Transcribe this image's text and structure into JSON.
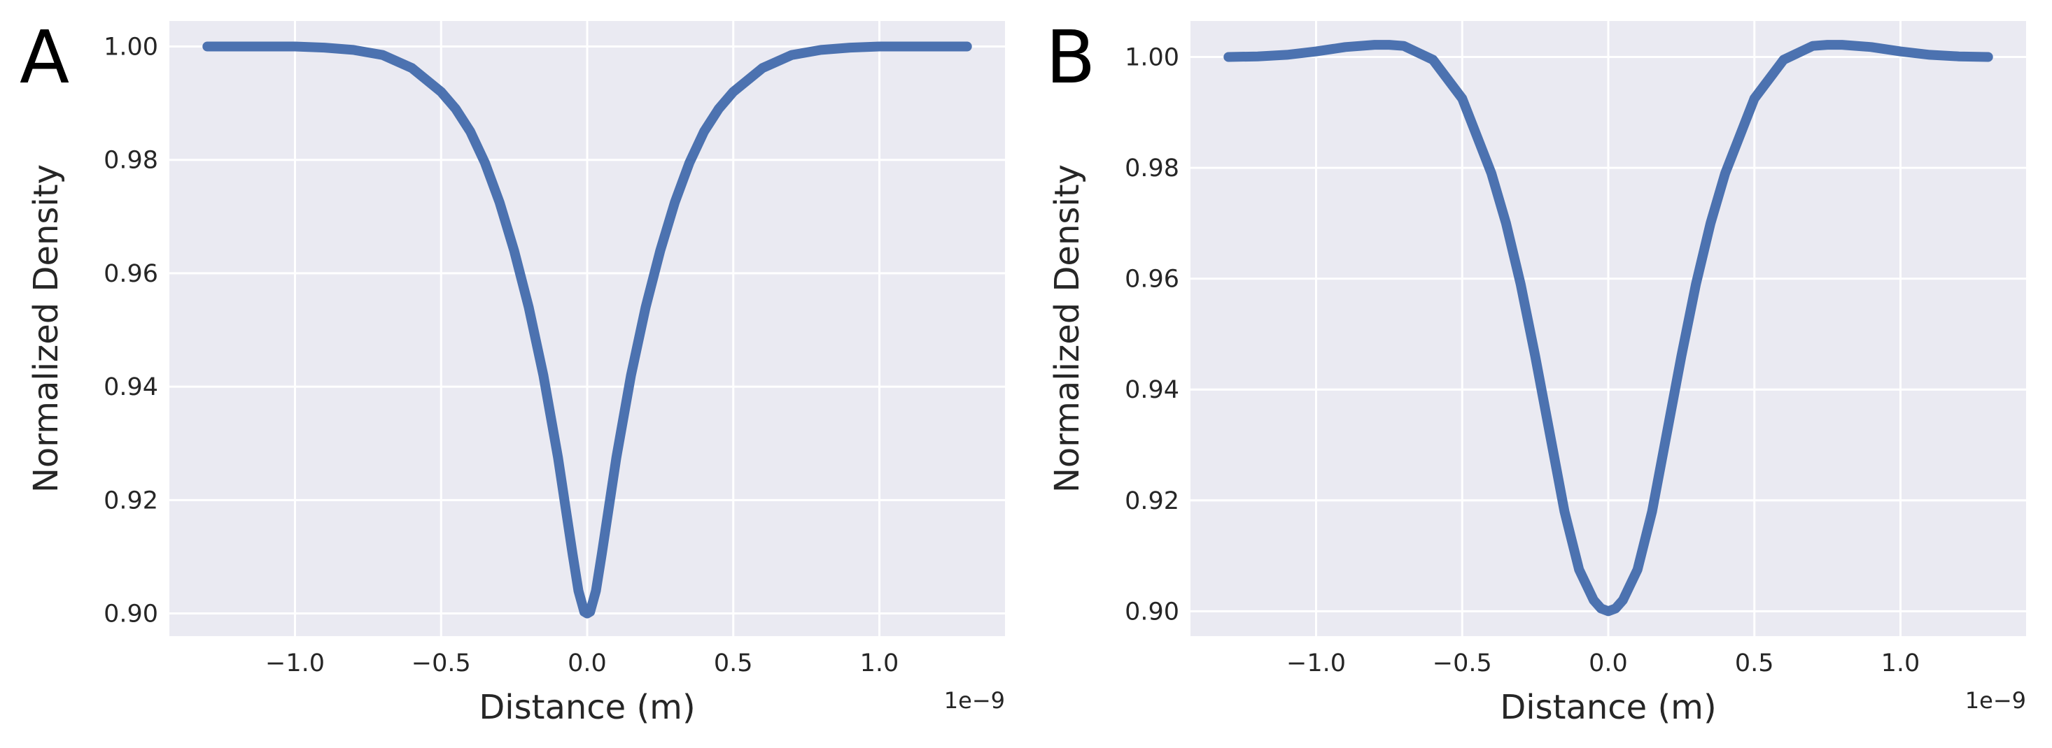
{
  "figure": {
    "panels": [
      {
        "letter": "A",
        "offset_label": "1e−9"
      },
      {
        "letter": "B",
        "offset_label": "1e−9"
      }
    ]
  },
  "chart_data": [
    {
      "type": "line",
      "panel": "A",
      "title": "",
      "xlabel": "Distance (m)",
      "ylabel": "Normalized Density",
      "x_scale_note": "1e−9",
      "xlim": [
        -1.43,
        1.43
      ],
      "ylim": [
        0.896,
        1.0045
      ],
      "xticks": [
        -1.0,
        -0.5,
        0.0,
        0.5,
        1.0
      ],
      "xtick_labels": [
        "−1.0",
        "−0.5",
        "0.0",
        "0.5",
        "1.0"
      ],
      "yticks": [
        0.9,
        0.92,
        0.94,
        0.96,
        0.98,
        1.0
      ],
      "ytick_labels": [
        "0.90",
        "0.92",
        "0.94",
        "0.96",
        "0.98",
        "1.00"
      ],
      "grid": true,
      "legend": "none",
      "series": [
        {
          "name": "density",
          "color": "#4c72b0",
          "x": [
            -1.3,
            -1.2,
            -1.1,
            -1.0,
            -0.9,
            -0.8,
            -0.7,
            -0.6,
            -0.5,
            -0.45,
            -0.4,
            -0.35,
            -0.3,
            -0.25,
            -0.2,
            -0.15,
            -0.1,
            -0.075,
            -0.05,
            -0.03,
            -0.01,
            0.0,
            0.01,
            0.03,
            0.05,
            0.075,
            0.1,
            0.15,
            0.2,
            0.25,
            0.3,
            0.35,
            0.4,
            0.45,
            0.5,
            0.6,
            0.7,
            0.8,
            0.9,
            1.0,
            1.1,
            1.2,
            1.3
          ],
          "y": [
            1.0,
            1.0,
            1.0,
            1.0,
            0.9998,
            0.9994,
            0.9985,
            0.9962,
            0.992,
            0.989,
            0.985,
            0.9795,
            0.9725,
            0.964,
            0.954,
            0.942,
            0.9275,
            0.919,
            0.9105,
            0.904,
            0.9003,
            0.9,
            0.9003,
            0.904,
            0.9105,
            0.919,
            0.9275,
            0.942,
            0.954,
            0.964,
            0.9725,
            0.9795,
            0.985,
            0.989,
            0.992,
            0.9962,
            0.9985,
            0.9994,
            0.9998,
            1.0,
            1.0,
            1.0,
            1.0
          ]
        }
      ]
    },
    {
      "type": "line",
      "panel": "B",
      "title": "",
      "xlabel": "Distance (m)",
      "ylabel": "Normalized Density",
      "x_scale_note": "1e−9",
      "xlim": [
        -1.43,
        1.43
      ],
      "ylim": [
        0.8955,
        1.0065
      ],
      "xticks": [
        -1.0,
        -0.5,
        0.0,
        0.5,
        1.0
      ],
      "xtick_labels": [
        "−1.0",
        "−0.5",
        "0.0",
        "0.5",
        "1.0"
      ],
      "yticks": [
        0.9,
        0.92,
        0.94,
        0.96,
        0.98,
        1.0
      ],
      "ytick_labels": [
        "0.90",
        "0.92",
        "0.94",
        "0.96",
        "0.98",
        "1.00"
      ],
      "grid": true,
      "legend": "none",
      "series": [
        {
          "name": "density",
          "color": "#4c72b0",
          "x": [
            -1.3,
            -1.2,
            -1.1,
            -1.0,
            -0.9,
            -0.8,
            -0.75,
            -0.7,
            -0.6,
            -0.5,
            -0.4,
            -0.35,
            -0.3,
            -0.25,
            -0.2,
            -0.15,
            -0.1,
            -0.05,
            -0.025,
            0.0,
            0.025,
            0.05,
            0.1,
            0.15,
            0.2,
            0.25,
            0.3,
            0.35,
            0.4,
            0.5,
            0.6,
            0.7,
            0.75,
            0.8,
            0.9,
            1.0,
            1.1,
            1.2,
            1.3
          ],
          "y": [
            1.0,
            1.0001,
            1.0004,
            1.001,
            1.0018,
            1.0022,
            1.0022,
            1.002,
            0.9995,
            0.9925,
            0.979,
            0.97,
            0.959,
            0.946,
            0.932,
            0.918,
            0.9075,
            0.902,
            0.9005,
            0.9,
            0.9005,
            0.902,
            0.9075,
            0.918,
            0.932,
            0.946,
            0.959,
            0.97,
            0.979,
            0.9925,
            0.9995,
            1.002,
            1.0022,
            1.0022,
            1.0018,
            1.001,
            1.0004,
            1.0001,
            1.0
          ]
        }
      ]
    }
  ]
}
